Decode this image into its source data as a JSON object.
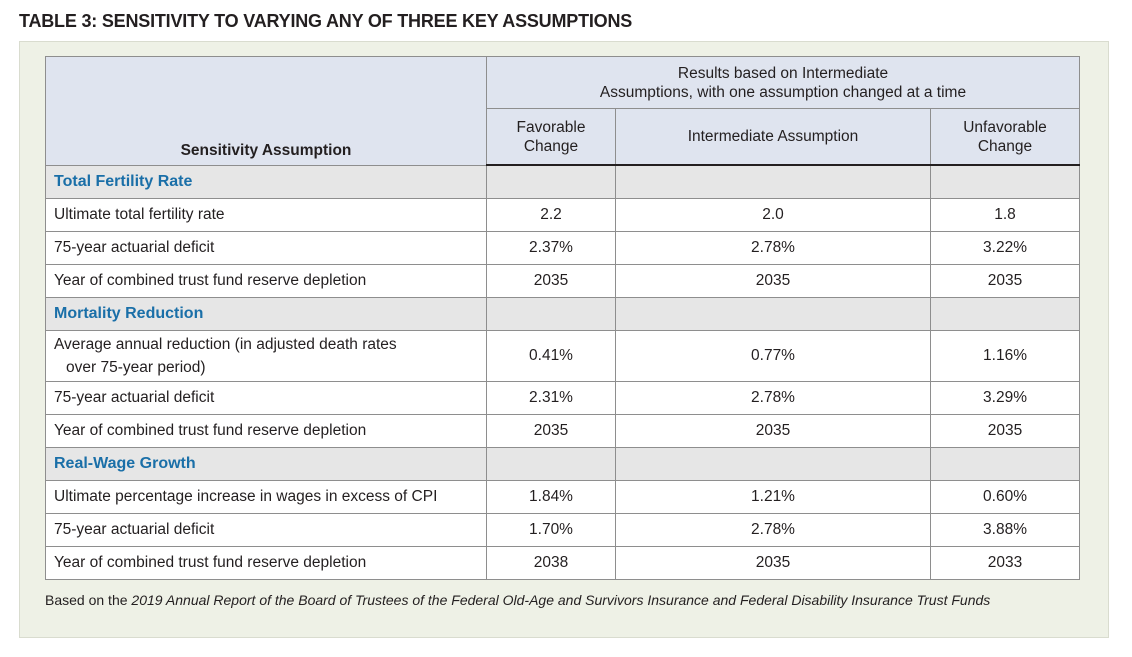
{
  "title": "TABLE 3: SENSITIVITY TO VARYING ANY OF THREE KEY ASSUMPTIONS",
  "header": {
    "label": "Sensitivity Assumption",
    "group_line1": "Results based on Intermediate",
    "group_line2": "Assumptions, with one assumption changed at a time",
    "favorable_line1": "Favorable",
    "favorable_line2": "Change",
    "intermediate": "Intermediate Assumption",
    "unfavorable_line1": "Unfavorable",
    "unfavorable_line2": "Change"
  },
  "sections": [
    {
      "title": "Total Fertility Rate",
      "rows": [
        {
          "label": "Ultimate total fertility rate",
          "favorable": "2.2",
          "intermediate": "2.0",
          "unfavorable": "1.8"
        },
        {
          "label": "75-year actuarial deficit",
          "favorable": "2.37%",
          "intermediate": "2.78%",
          "unfavorable": "3.22%"
        },
        {
          "label": "Year of combined trust fund reserve depletion",
          "favorable": "2035",
          "intermediate": "2035",
          "unfavorable": "2035"
        }
      ]
    },
    {
      "title": "Mortality Reduction",
      "rows": [
        {
          "label": "Average annual reduction (in adjusted death rates",
          "label2": "over 75-year period)",
          "favorable": "0.41%",
          "intermediate": "0.77%",
          "unfavorable": "1.16%"
        },
        {
          "label": "75-year actuarial deficit",
          "favorable": "2.31%",
          "intermediate": "2.78%",
          "unfavorable": "3.29%"
        },
        {
          "label": "Year of combined trust fund reserve depletion",
          "favorable": "2035",
          "intermediate": "2035",
          "unfavorable": "2035"
        }
      ]
    },
    {
      "title": "Real-Wage Growth",
      "rows": [
        {
          "label": "Ultimate percentage increase in wages in excess of CPI",
          "favorable": "1.84%",
          "intermediate": "1.21%",
          "unfavorable": "0.60%"
        },
        {
          "label": "75-year actuarial deficit",
          "favorable": "1.70%",
          "intermediate": "2.78%",
          "unfavorable": "3.88%"
        },
        {
          "label": "Year of combined trust fund reserve depletion",
          "favorable": "2038",
          "intermediate": "2035",
          "unfavorable": "2033"
        }
      ]
    }
  ],
  "footnote": {
    "prefix": "Based on the ",
    "source": "2019 Annual Report of the Board of Trustees of the Federal Old-Age and Survivors Insurance and Federal Disability Insurance Trust Funds"
  }
}
